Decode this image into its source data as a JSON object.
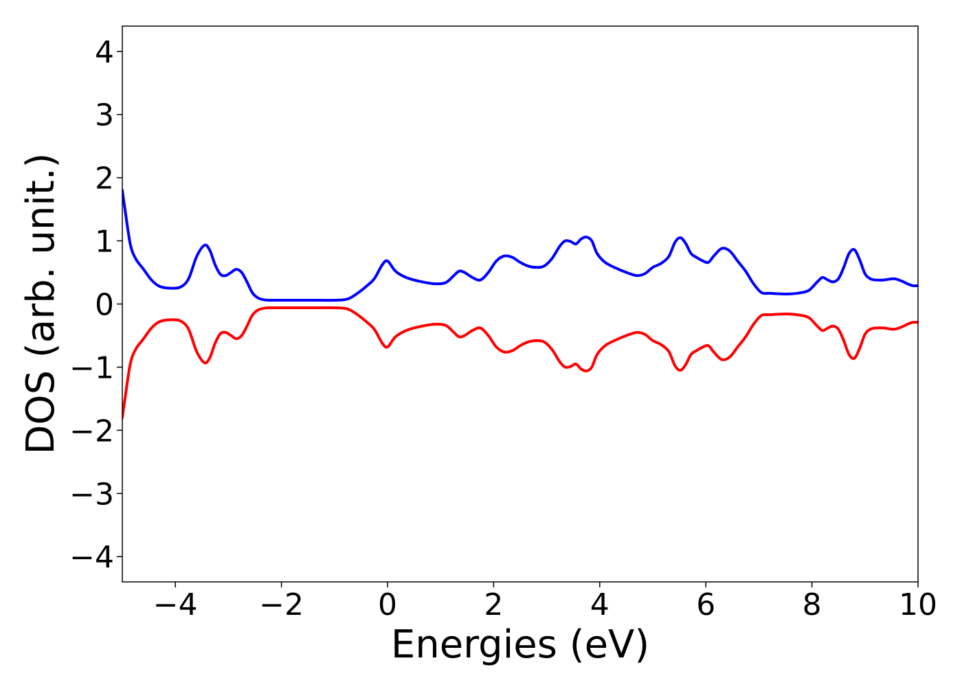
{
  "chart_data": {
    "type": "line",
    "xlabel": "Energies (eV)",
    "ylabel": "DOS (arb. unit.)",
    "xlim": [
      -5,
      10
    ],
    "ylim": [
      -4.4,
      4.4
    ],
    "xticks": [
      -4,
      -2,
      0,
      2,
      4,
      6,
      8,
      10
    ],
    "xtick_labels": [
      "−4",
      "−2",
      "0",
      "2",
      "4",
      "6",
      "8",
      "10"
    ],
    "yticks": [
      4,
      3,
      2,
      1,
      0,
      -1,
      -2,
      -3,
      -4
    ],
    "ytick_labels": [
      "4",
      "3",
      "2",
      "1",
      "0",
      "−1",
      "−2",
      "−3",
      "−4"
    ],
    "grid": false,
    "legend": false,
    "series": [
      {
        "color": "#0000ff",
        "x": [
          -5.0,
          -4.95,
          -4.85,
          -4.75,
          -4.6,
          -4.45,
          -4.3,
          -4.1,
          -3.9,
          -3.75,
          -3.6,
          -3.45,
          -3.35,
          -3.25,
          -3.15,
          -3.05,
          -2.95,
          -2.85,
          -2.75,
          -2.65,
          -2.55,
          -2.45,
          -2.35,
          -2.25,
          -2.0,
          -1.5,
          -1.0,
          -0.75,
          -0.55,
          -0.4,
          -0.25,
          -0.1,
          0.0,
          0.15,
          0.35,
          0.6,
          0.9,
          1.1,
          1.25,
          1.35,
          1.45,
          1.6,
          1.75,
          1.9,
          2.05,
          2.2,
          2.35,
          2.5,
          2.65,
          2.8,
          2.95,
          3.1,
          3.25,
          3.35,
          3.45,
          3.55,
          3.65,
          3.75,
          3.85,
          3.95,
          4.1,
          4.3,
          4.5,
          4.7,
          4.85,
          5.0,
          5.15,
          5.3,
          5.42,
          5.52,
          5.62,
          5.72,
          5.82,
          5.95,
          6.05,
          6.15,
          6.3,
          6.45,
          6.6,
          6.75,
          6.9,
          7.05,
          7.2,
          7.4,
          7.6,
          7.8,
          7.95,
          8.1,
          8.2,
          8.3,
          8.4,
          8.5,
          8.6,
          8.7,
          8.8,
          8.9,
          9.0,
          9.1,
          9.2,
          9.35,
          9.55,
          9.7,
          9.8,
          9.9,
          10.0
        ],
        "y": [
          1.8,
          1.5,
          0.95,
          0.72,
          0.55,
          0.38,
          0.28,
          0.25,
          0.27,
          0.4,
          0.75,
          0.93,
          0.85,
          0.62,
          0.47,
          0.45,
          0.5,
          0.55,
          0.5,
          0.35,
          0.18,
          0.1,
          0.07,
          0.06,
          0.06,
          0.06,
          0.06,
          0.08,
          0.18,
          0.28,
          0.4,
          0.62,
          0.68,
          0.52,
          0.42,
          0.36,
          0.32,
          0.34,
          0.45,
          0.52,
          0.5,
          0.42,
          0.38,
          0.5,
          0.68,
          0.76,
          0.74,
          0.66,
          0.6,
          0.58,
          0.6,
          0.72,
          0.92,
          1.0,
          0.99,
          0.95,
          1.03,
          1.06,
          1.0,
          0.8,
          0.66,
          0.57,
          0.5,
          0.45,
          0.48,
          0.58,
          0.64,
          0.75,
          0.98,
          1.05,
          0.96,
          0.8,
          0.74,
          0.68,
          0.66,
          0.76,
          0.88,
          0.84,
          0.68,
          0.52,
          0.32,
          0.18,
          0.17,
          0.16,
          0.16,
          0.18,
          0.22,
          0.35,
          0.42,
          0.38,
          0.35,
          0.4,
          0.58,
          0.8,
          0.86,
          0.7,
          0.48,
          0.4,
          0.38,
          0.38,
          0.4,
          0.36,
          0.32,
          0.29,
          0.29
        ]
      },
      {
        "color": "#ff0000",
        "x": [
          -5.0,
          -4.95,
          -4.85,
          -4.75,
          -4.6,
          -4.45,
          -4.3,
          -4.1,
          -3.9,
          -3.75,
          -3.6,
          -3.45,
          -3.35,
          -3.25,
          -3.15,
          -3.05,
          -2.95,
          -2.85,
          -2.75,
          -2.65,
          -2.55,
          -2.45,
          -2.35,
          -2.25,
          -2.0,
          -1.5,
          -1.0,
          -0.75,
          -0.55,
          -0.4,
          -0.25,
          -0.1,
          0.0,
          0.15,
          0.35,
          0.6,
          0.9,
          1.1,
          1.25,
          1.35,
          1.45,
          1.6,
          1.75,
          1.9,
          2.05,
          2.2,
          2.35,
          2.5,
          2.65,
          2.8,
          2.95,
          3.1,
          3.25,
          3.35,
          3.45,
          3.55,
          3.65,
          3.75,
          3.85,
          3.95,
          4.1,
          4.3,
          4.5,
          4.7,
          4.85,
          5.0,
          5.15,
          5.3,
          5.42,
          5.52,
          5.62,
          5.72,
          5.82,
          5.95,
          6.05,
          6.15,
          6.3,
          6.45,
          6.6,
          6.75,
          6.9,
          7.05,
          7.2,
          7.4,
          7.6,
          7.8,
          7.95,
          8.1,
          8.2,
          8.3,
          8.4,
          8.5,
          8.6,
          8.7,
          8.8,
          8.9,
          9.0,
          9.1,
          9.2,
          9.35,
          9.55,
          9.7,
          9.8,
          9.9,
          10.0
        ],
        "y": [
          -1.8,
          -1.5,
          -0.95,
          -0.72,
          -0.55,
          -0.38,
          -0.28,
          -0.25,
          -0.27,
          -0.4,
          -0.75,
          -0.93,
          -0.85,
          -0.62,
          -0.47,
          -0.45,
          -0.5,
          -0.55,
          -0.5,
          -0.35,
          -0.18,
          -0.1,
          -0.07,
          -0.06,
          -0.06,
          -0.06,
          -0.06,
          -0.08,
          -0.18,
          -0.28,
          -0.4,
          -0.62,
          -0.68,
          -0.52,
          -0.42,
          -0.36,
          -0.32,
          -0.34,
          -0.45,
          -0.52,
          -0.5,
          -0.42,
          -0.38,
          -0.5,
          -0.68,
          -0.76,
          -0.74,
          -0.66,
          -0.6,
          -0.58,
          -0.6,
          -0.72,
          -0.92,
          -1.0,
          -0.99,
          -0.95,
          -1.03,
          -1.06,
          -1.0,
          -0.8,
          -0.66,
          -0.57,
          -0.5,
          -0.45,
          -0.48,
          -0.58,
          -0.64,
          -0.75,
          -0.98,
          -1.05,
          -0.96,
          -0.8,
          -0.74,
          -0.68,
          -0.66,
          -0.76,
          -0.88,
          -0.84,
          -0.68,
          -0.52,
          -0.32,
          -0.18,
          -0.17,
          -0.16,
          -0.16,
          -0.18,
          -0.22,
          -0.35,
          -0.42,
          -0.38,
          -0.35,
          -0.4,
          -0.58,
          -0.8,
          -0.86,
          -0.7,
          -0.48,
          -0.4,
          -0.38,
          -0.38,
          -0.4,
          -0.36,
          -0.32,
          -0.29,
          -0.29
        ]
      }
    ]
  }
}
